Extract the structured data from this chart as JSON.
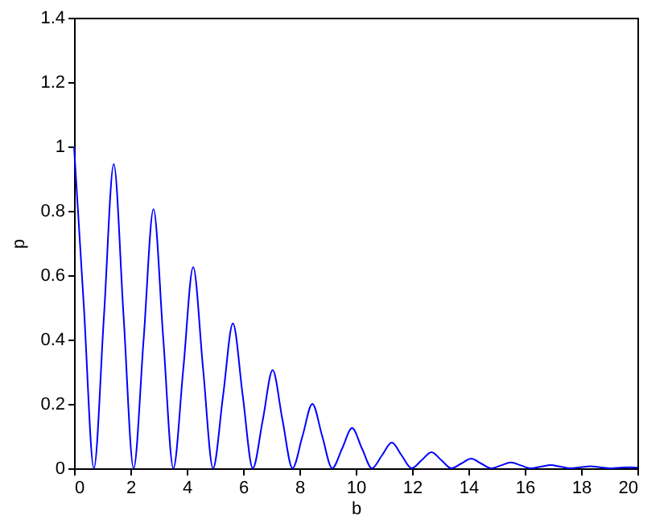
{
  "chart_data": {
    "type": "line",
    "xlabel": "b",
    "ylabel": "p",
    "x": [
      0,
      0.35,
      0.705,
      1.06,
      1.41,
      1.76,
      2.115,
      2.47,
      2.82,
      3.17,
      3.525,
      3.88,
      4.23,
      4.58,
      4.935,
      5.29,
      5.64,
      5.99,
      6.345,
      6.7,
      7.05,
      7.4,
      7.755,
      8.11,
      8.46,
      8.81,
      9.165,
      9.52,
      9.87,
      10.22,
      10.575,
      10.93,
      11.28,
      11.63,
      11.985,
      12.34,
      12.69,
      13.04,
      13.395,
      13.75,
      14.1,
      14.45,
      14.805,
      15.16,
      15.51,
      15.86,
      16.215,
      16.57,
      16.92,
      17.27,
      17.625,
      17.98,
      18.33,
      18.68,
      19.035,
      19.39,
      19.74,
      20
    ],
    "series": [
      {
        "color": "#0000ff",
        "values": [
          1,
          0.5,
          0,
          0.47,
          0.945,
          0.47,
          0,
          0.4,
          0.805,
          0.4,
          0,
          0.31,
          0.625,
          0.31,
          0,
          0.225,
          0.45,
          0.225,
          0,
          0.15,
          0.305,
          0.15,
          0,
          0.1,
          0.2,
          0.1,
          0,
          0.062,
          0.125,
          0.062,
          0,
          0.04,
          0.08,
          0.04,
          0,
          0.025,
          0.05,
          0.025,
          0,
          0.015,
          0.03,
          0.015,
          0,
          0.009,
          0.018,
          0.009,
          0,
          0.005,
          0.01,
          0.005,
          0,
          0.003,
          0.006,
          0.003,
          0,
          0.002,
          0.003,
          0.002
        ]
      }
    ],
    "xlim": [
      0,
      20
    ],
    "xticks": [
      0,
      2,
      4,
      6,
      8,
      10,
      12,
      14,
      16,
      18,
      20
    ],
    "ylim": [
      0,
      1.4
    ],
    "yticks": [
      0,
      0.2,
      0.4,
      0.6,
      0.8,
      1,
      1.2,
      1.4
    ],
    "grid": false,
    "legend": false,
    "marker": "none",
    "line_style": "solid"
  }
}
